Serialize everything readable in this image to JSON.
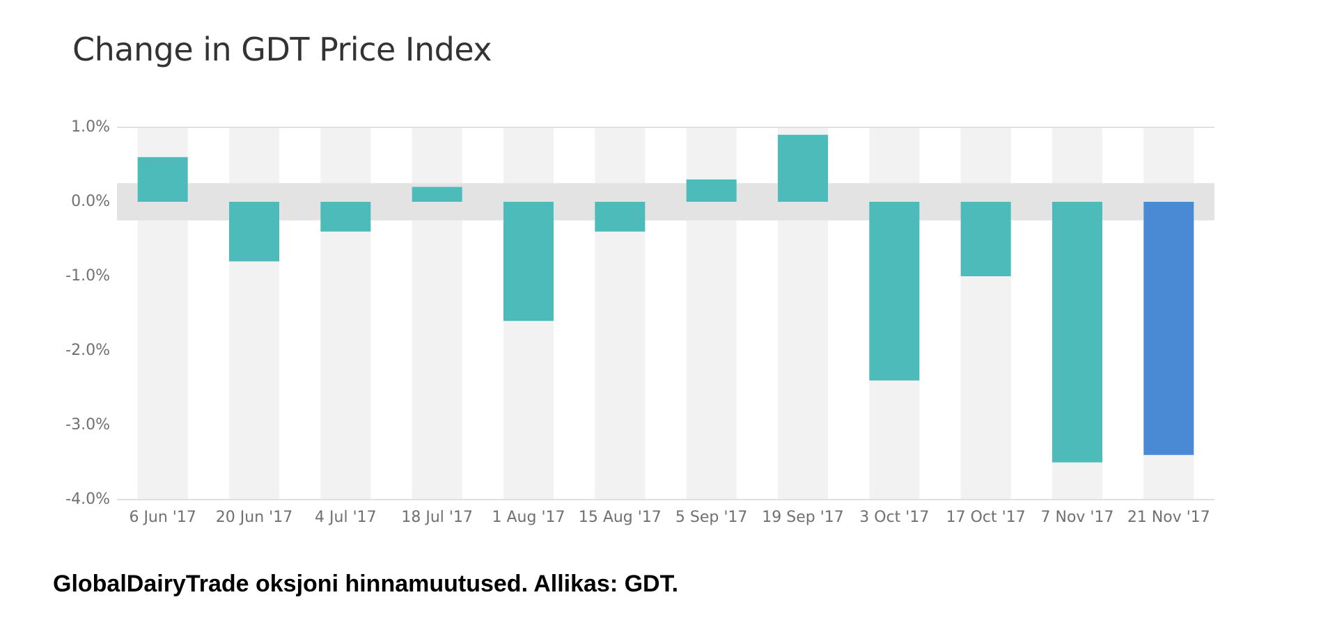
{
  "chart_data": {
    "type": "bar",
    "title": "Change in GDT Price Index",
    "xlabel": "",
    "ylabel": "",
    "categories": [
      "6 Jun '17",
      "20 Jun '17",
      "4 Jul '17",
      "18 Jul '17",
      "1 Aug '17",
      "15 Aug '17",
      "5 Sep '17",
      "19 Sep '17",
      "3 Oct '17",
      "17 Oct '17",
      "7 Nov '17",
      "21 Nov '17"
    ],
    "values": [
      0.6,
      -0.8,
      -0.4,
      0.2,
      -1.6,
      -0.4,
      0.3,
      0.9,
      -2.4,
      -1.0,
      -3.5,
      -3.4
    ],
    "ylim": [
      -4.0,
      1.0
    ],
    "yticks": [
      1.0,
      0.0,
      -1.0,
      -2.0,
      -3.0,
      -4.0
    ],
    "ytick_labels": [
      "1.0%",
      "0.0%",
      "-1.0%",
      "-2.0%",
      "-3.0%",
      "-4.0%"
    ],
    "zero_band": [
      -0.25,
      0.25
    ],
    "grid": false,
    "colors": {
      "bar": "#4dbbba",
      "highlight_bar": "#4a8ad4",
      "column_background": "#f2f2f2",
      "zero_band": "#e3e3e3",
      "axis_line": "#e0e0e0"
    },
    "highlight_index": 11
  },
  "caption": "GlobalDairyTrade oksjoni hinnamuutused. Allikas: GDT."
}
